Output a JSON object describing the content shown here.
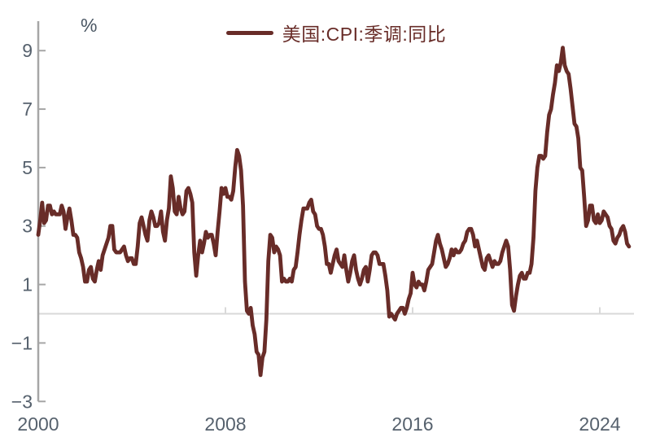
{
  "chart_data": {
    "type": "line",
    "title": "",
    "xlabel": "",
    "ylabel": "%",
    "unit_label": "%",
    "legend_position": "top-center",
    "grid": "zero-line-only",
    "zero_line": true,
    "x_ticks": [
      "2000",
      "2008",
      "2016",
      "2024"
    ],
    "x_tick_years": [
      2000,
      2008,
      2016,
      2024
    ],
    "y_ticks": [
      "9",
      "7",
      "5",
      "3",
      "1",
      "−1",
      "−3"
    ],
    "y_tick_values": [
      9,
      7,
      5,
      3,
      1,
      -1,
      -3
    ],
    "ylim": [
      -3,
      9.6
    ],
    "xlim_years": [
      2000,
      2025.4
    ],
    "colors": {
      "line": "#682C28",
      "axis": "#a6a6a6",
      "zero_line": "#d9d9d9",
      "tick_labels": "#56616d",
      "unit_label": "#4a5663"
    },
    "series": [
      {
        "name": "美国:CPI:季调:同比",
        "color": "#682C28",
        "unit": "%",
        "frequency": "monthly",
        "start": "2000-01",
        "end": "2025-04",
        "values": [
          2.7,
          3.2,
          3.8,
          3.1,
          3.2,
          3.7,
          3.7,
          3.4,
          3.5,
          3.4,
          3.4,
          3.4,
          3.7,
          3.5,
          2.9,
          3.3,
          3.6,
          3.2,
          2.7,
          2.7,
          2.6,
          2.1,
          1.9,
          1.6,
          1.1,
          1.1,
          1.5,
          1.6,
          1.2,
          1.1,
          1.5,
          1.8,
          1.5,
          2.0,
          2.2,
          2.4,
          2.6,
          3.0,
          3.0,
          2.2,
          2.1,
          2.1,
          2.1,
          2.2,
          2.3,
          2.0,
          1.8,
          1.9,
          1.9,
          1.7,
          1.7,
          2.3,
          3.1,
          3.3,
          3.0,
          2.7,
          2.5,
          3.2,
          3.5,
          3.3,
          3.0,
          3.0,
          3.1,
          3.5,
          2.8,
          2.5,
          3.2,
          3.6,
          4.7,
          4.3,
          3.5,
          3.4,
          4.0,
          3.6,
          3.4,
          3.5,
          4.2,
          4.3,
          4.1,
          3.8,
          2.1,
          1.3,
          2.0,
          2.5,
          2.1,
          2.4,
          2.8,
          2.6,
          2.7,
          2.7,
          2.4,
          2.0,
          2.8,
          3.5,
          4.3,
          4.1,
          4.3,
          4.0,
          4.0,
          3.9,
          4.2,
          5.0,
          5.6,
          5.4,
          4.9,
          3.7,
          1.1,
          0.1,
          0.0,
          0.2,
          -0.4,
          -0.7,
          -1.3,
          -1.4,
          -2.1,
          -1.5,
          -1.3,
          -0.2,
          1.8,
          2.7,
          2.6,
          2.1,
          2.3,
          2.2,
          2.0,
          1.1,
          1.2,
          1.1,
          1.1,
          1.2,
          1.1,
          1.5,
          1.6,
          2.1,
          2.7,
          3.2,
          3.6,
          3.6,
          3.6,
          3.8,
          3.9,
          3.5,
          3.4,
          3.0,
          2.9,
          2.9,
          2.7,
          2.3,
          1.7,
          1.7,
          1.4,
          1.7,
          2.0,
          2.2,
          1.8,
          1.7,
          1.6,
          2.0,
          1.5,
          1.1,
          1.4,
          1.8,
          2.0,
          1.5,
          1.2,
          1.0,
          1.2,
          1.5,
          1.6,
          1.1,
          1.5,
          2.0,
          2.1,
          2.1,
          2.0,
          1.7,
          1.7,
          1.7,
          1.3,
          0.8,
          -0.1,
          0.0,
          -0.1,
          -0.2,
          0.0,
          0.1,
          0.2,
          0.2,
          0.0,
          0.2,
          0.5,
          0.7,
          1.4,
          1.0,
          0.9,
          1.1,
          1.0,
          1.0,
          0.8,
          1.1,
          1.5,
          1.6,
          1.7,
          2.1,
          2.5,
          2.7,
          2.4,
          2.2,
          1.9,
          1.6,
          1.7,
          1.9,
          2.2,
          2.0,
          2.2,
          2.1,
          2.1,
          2.2,
          2.4,
          2.5,
          2.8,
          2.9,
          2.9,
          2.7,
          2.3,
          2.5,
          2.2,
          1.9,
          1.6,
          1.5,
          1.9,
          2.0,
          1.8,
          1.6,
          1.8,
          1.7,
          1.7,
          1.8,
          2.1,
          2.3,
          2.5,
          2.3,
          1.5,
          0.3,
          0.1,
          0.6,
          1.0,
          1.3,
          1.4,
          1.2,
          1.2,
          1.4,
          1.4,
          1.7,
          2.6,
          4.2,
          5.0,
          5.4,
          5.4,
          5.3,
          5.4,
          6.2,
          6.8,
          7.0,
          7.5,
          7.9,
          8.5,
          8.3,
          8.6,
          9.1,
          8.5,
          8.3,
          8.2,
          7.7,
          7.1,
          6.5,
          6.4,
          6.0,
          5.0,
          4.9,
          4.0,
          3.0,
          3.2,
          3.7,
          3.7,
          3.2,
          3.1,
          3.4,
          3.1,
          3.2,
          3.5,
          3.4,
          3.3,
          3.0,
          2.9,
          2.5,
          2.4,
          2.6,
          2.7,
          2.9,
          3.0,
          2.8,
          2.4,
          2.3
        ]
      }
    ]
  }
}
